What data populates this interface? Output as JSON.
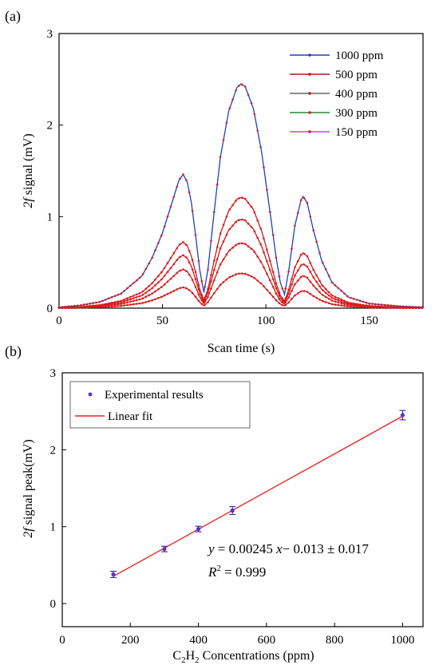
{
  "chart_data": [
    {
      "type": "line",
      "panel_label": "(a)",
      "xlabel": "Scan time (s)",
      "ylabel_italic": "2f",
      "ylabel_rest": " signal (mV)",
      "xlim": [
        0,
        176
      ],
      "ylim": [
        0,
        3
      ],
      "xticks": [
        0,
        50,
        100,
        150
      ],
      "yticks": [
        0,
        1,
        2,
        3
      ],
      "legend_position": "top-right",
      "legend": [
        {
          "label": "1000 ppm",
          "color": "#1f3fbf"
        },
        {
          "label": "500 ppm",
          "color": "#b01a1a"
        },
        {
          "label": "400 ppm",
          "color": "#666666"
        },
        {
          "label": "300 ppm",
          "color": "#2a8a3a"
        },
        {
          "label": "150 ppm",
          "color": "#b44fd6"
        }
      ],
      "series": [
        {
          "name": "1000 ppm",
          "color": "#1f3fbf",
          "peak": 2.45,
          "points": [
            [
              0,
              0.01
            ],
            [
              10,
              0.03
            ],
            [
              20,
              0.07
            ],
            [
              30,
              0.16
            ],
            [
              40,
              0.35
            ],
            [
              45,
              0.55
            ],
            [
              50,
              0.82
            ],
            [
              55,
              1.18
            ],
            [
              58,
              1.4
            ],
            [
              60,
              1.46
            ],
            [
              62,
              1.38
            ],
            [
              64,
              1.15
            ],
            [
              66,
              0.8
            ],
            [
              68,
              0.42
            ],
            [
              70,
              0.17
            ],
            [
              72,
              0.42
            ],
            [
              75,
              1.05
            ],
            [
              78,
              1.65
            ],
            [
              82,
              2.15
            ],
            [
              86,
              2.41
            ],
            [
              88,
              2.45
            ],
            [
              90,
              2.42
            ],
            [
              94,
              2.18
            ],
            [
              98,
              1.7
            ],
            [
              102,
              1.05
            ],
            [
              105,
              0.55
            ],
            [
              107,
              0.28
            ],
            [
              109,
              0.15
            ],
            [
              111,
              0.4
            ],
            [
              114,
              0.9
            ],
            [
              117,
              1.18
            ],
            [
              118,
              1.22
            ],
            [
              120,
              1.15
            ],
            [
              123,
              0.85
            ],
            [
              127,
              0.52
            ],
            [
              132,
              0.28
            ],
            [
              140,
              0.12
            ],
            [
              150,
              0.05
            ],
            [
              165,
              0.02
            ],
            [
              176,
              0.01
            ]
          ]
        },
        {
          "name": "500 ppm",
          "color": "#b01a1a",
          "peak": 1.21
        },
        {
          "name": "400 ppm",
          "color": "#666666",
          "peak": 0.97
        },
        {
          "name": "300 ppm",
          "color": "#2a8a3a",
          "peak": 0.71
        },
        {
          "name": "150 ppm",
          "color": "#b44fd6",
          "peak": 0.38
        }
      ]
    },
    {
      "type": "scatter",
      "panel_label": "(b)",
      "xlabel_prefix": "C",
      "xlabel_sub1": "2",
      "xlabel_mid": "H",
      "xlabel_sub2": "2",
      "xlabel_suffix": " Concentrations (ppm)",
      "ylabel_italic": "2f",
      "ylabel_rest": " signal peak(mV)",
      "xlim": [
        0,
        1060
      ],
      "ylim": [
        -0.3,
        3
      ],
      "xticks": [
        0,
        200,
        400,
        600,
        800,
        1000
      ],
      "yticks": [
        0,
        1,
        2,
        3
      ],
      "legend_position": "top-left",
      "legend": [
        {
          "label": "Experimental results",
          "color": "#5a2fd0"
        },
        {
          "label": "Linear fit",
          "color": "#e8201a"
        }
      ],
      "points": [
        {
          "x": 150,
          "y": 0.38,
          "err": 0.02
        },
        {
          "x": 300,
          "y": 0.71,
          "err": 0.015
        },
        {
          "x": 400,
          "y": 0.97,
          "err": 0.015
        },
        {
          "x": 500,
          "y": 1.21,
          "err": 0.03
        },
        {
          "x": 1000,
          "y": 2.45,
          "err": 0.04
        }
      ],
      "fit": {
        "slope": 0.00245,
        "intercept": -0.013,
        "x_range": [
          150,
          1000
        ],
        "color": "#e8201a"
      },
      "equation": {
        "y": "y",
        "eq_a": " = 0.00245 ",
        "x": "x",
        "eq_b": "− 0.013 ± 0.017",
        "r": "R",
        "r_sup": "2",
        "r_val": " = 0.999"
      }
    }
  ]
}
